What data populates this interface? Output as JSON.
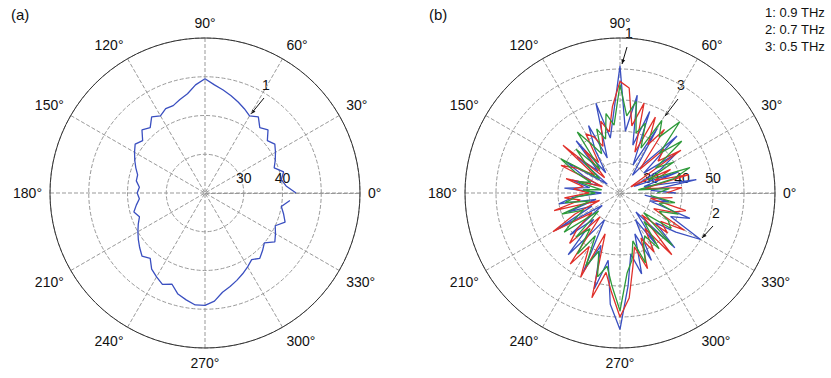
{
  "chart_data": [
    {
      "type": "polar",
      "title": "(a)",
      "x": [
        0,
        5,
        10,
        15,
        20,
        25,
        30,
        35,
        40,
        45,
        50,
        55,
        60,
        65,
        70,
        75,
        80,
        85,
        90,
        95,
        100,
        105,
        110,
        115,
        120,
        125,
        130,
        135,
        140,
        145,
        150,
        155,
        160,
        165,
        170,
        175,
        180,
        185,
        190,
        195,
        200,
        205,
        210,
        215,
        220,
        225,
        230,
        235,
        240,
        245,
        250,
        255,
        260,
        265,
        270,
        275,
        280,
        285,
        290,
        295,
        300,
        305,
        310,
        315,
        320,
        325,
        330,
        335,
        340,
        345,
        350,
        355
      ],
      "xlim": [
        0,
        360
      ],
      "xticks": [
        {
          "value": 0,
          "label": "0°"
        },
        {
          "value": 30,
          "label": "30°"
        },
        {
          "value": 60,
          "label": "60°"
        },
        {
          "value": 90,
          "label": "90°"
        },
        {
          "value": 120,
          "label": "120°"
        },
        {
          "value": 150,
          "label": "150°"
        },
        {
          "value": 180,
          "label": "180°"
        },
        {
          "value": 210,
          "label": "210°"
        },
        {
          "value": 240,
          "label": "240°"
        },
        {
          "value": 270,
          "label": "270°"
        },
        {
          "value": 300,
          "label": "300°"
        },
        {
          "value": 330,
          "label": "330°"
        }
      ],
      "ylim": [
        20,
        60
      ],
      "yticks": [
        30,
        40
      ],
      "grid": true,
      "series": [
        {
          "color": "#3a4fc0",
          "values": [
            43.5,
            41,
            40,
            41,
            39,
            40,
            41,
            42,
            41,
            43,
            42,
            44,
            43,
            44,
            45,
            46,
            47,
            48,
            49.5,
            48,
            46,
            45,
            44,
            44,
            43,
            44,
            42,
            43,
            41,
            42,
            41,
            40,
            39,
            38,
            38,
            37,
            37.5,
            37,
            38,
            39,
            38,
            39,
            40,
            41,
            42,
            43,
            42,
            44,
            45,
            46,
            45,
            47,
            48,
            49,
            49,
            48,
            46,
            45,
            44,
            43,
            42,
            41,
            42,
            41,
            40,
            42,
            41,
            40,
            42,
            41,
            40,
            42
          ]
        }
      ],
      "annotations": [
        {
          "text": "1"
        }
      ]
    },
    {
      "type": "polar",
      "title": "(b)",
      "x": [
        0,
        5,
        10,
        15,
        20,
        25,
        30,
        35,
        40,
        45,
        50,
        55,
        60,
        65,
        70,
        75,
        80,
        85,
        90,
        95,
        100,
        105,
        110,
        115,
        120,
        125,
        130,
        135,
        140,
        145,
        150,
        155,
        160,
        165,
        170,
        175,
        180,
        185,
        190,
        195,
        200,
        205,
        210,
        215,
        220,
        225,
        230,
        235,
        240,
        245,
        250,
        255,
        260,
        265,
        270,
        275,
        280,
        285,
        290,
        295,
        300,
        305,
        310,
        315,
        320,
        325,
        330,
        335,
        340,
        345,
        350,
        355
      ],
      "xlim": [
        0,
        360
      ],
      "xticks": [
        {
          "value": 0,
          "label": "0°"
        },
        {
          "value": 30,
          "label": "30°"
        },
        {
          "value": 60,
          "label": "60°"
        },
        {
          "value": 90,
          "label": "90°"
        },
        {
          "value": 120,
          "label": "120°"
        },
        {
          "value": 150,
          "label": "150°"
        },
        {
          "value": 180,
          "label": "180°"
        },
        {
          "value": 210,
          "label": "210°"
        },
        {
          "value": 240,
          "label": "240°"
        },
        {
          "value": 270,
          "label": "270°"
        },
        {
          "value": 300,
          "label": "300°"
        },
        {
          "value": 330,
          "label": "330°"
        }
      ],
      "ylim": [
        20,
        70
      ],
      "yticks": [
        30,
        40,
        50
      ],
      "grid": true,
      "legend": "top-right",
      "series": [
        {
          "name": "1: 0.9 THz",
          "color": "#3a4fc0",
          "values": [
            38,
            30,
            45,
            28,
            40,
            25,
            35,
            42,
            30,
            46,
            33,
            27,
            44,
            30,
            48,
            36,
            52,
            40,
            61,
            45,
            38,
            50,
            32,
            44,
            36,
            28,
            42,
            30,
            38,
            25,
            40,
            33,
            27,
            36,
            30,
            38,
            26,
            35,
            40,
            28,
            38,
            30,
            44,
            27,
            41,
            32,
            46,
            35,
            30,
            48,
            38,
            52,
            42,
            56,
            64,
            50,
            40,
            47,
            34,
            44,
            30,
            40,
            28,
            45,
            35,
            42,
            50,
            38,
            44,
            30,
            36,
            28
          ]
        },
        {
          "name": "2: 0.7 THz",
          "color": "#e0302a",
          "values": [
            35,
            40,
            28,
            43,
            32,
            38,
            24,
            44,
            36,
            40,
            30,
            45,
            38,
            47,
            34,
            50,
            42,
            54,
            56,
            48,
            40,
            44,
            36,
            40,
            42,
            32,
            38,
            27,
            44,
            30,
            36,
            41,
            26,
            38,
            32,
            35,
            30,
            38,
            33,
            42,
            27,
            36,
            45,
            31,
            38,
            43,
            30,
            48,
            40,
            50,
            34,
            55,
            46,
            52,
            60,
            54,
            44,
            38,
            46,
            36,
            42,
            34,
            46,
            30,
            40,
            36,
            44,
            32,
            38,
            42,
            30,
            37
          ]
        },
        {
          "name": "3: 0.5 THz",
          "color": "#2e9a3a",
          "values": [
            32,
            36,
            26,
            38,
            44,
            30,
            40,
            34,
            46,
            38,
            50,
            42,
            47,
            36,
            44,
            40,
            50,
            45,
            55,
            42,
            46,
            38,
            42,
            34,
            38,
            44,
            30,
            40,
            34,
            28,
            42,
            36,
            30,
            34,
            26,
            32,
            28,
            34,
            38,
            30,
            40,
            33,
            37,
            42,
            29,
            40,
            35,
            44,
            36,
            46,
            40,
            48,
            44,
            50,
            58,
            46,
            42,
            36,
            44,
            38,
            36,
            42,
            32,
            44,
            30,
            40,
            38,
            34,
            40,
            33,
            38,
            30
          ]
        }
      ],
      "annotations": [
        {
          "text": "1"
        },
        {
          "text": "2"
        },
        {
          "text": "3"
        }
      ]
    }
  ]
}
